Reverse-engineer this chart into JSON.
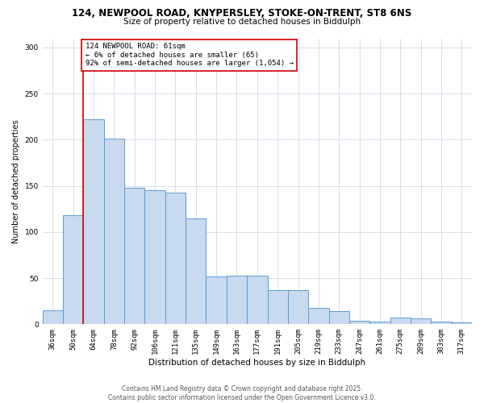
{
  "title_line1": "124, NEWPOOL ROAD, KNYPERSLEY, STOKE-ON-TRENT, ST8 6NS",
  "title_line2": "Size of property relative to detached houses in Biddulph",
  "xlabel": "Distribution of detached houses by size in Biddulph",
  "ylabel": "Number of detached properties",
  "categories": [
    "36sqm",
    "50sqm",
    "64sqm",
    "78sqm",
    "92sqm",
    "106sqm",
    "121sqm",
    "135sqm",
    "149sqm",
    "163sqm",
    "177sqm",
    "191sqm",
    "205sqm",
    "219sqm",
    "233sqm",
    "247sqm",
    "261sqm",
    "275sqm",
    "289sqm",
    "303sqm",
    "317sqm"
  ],
  "values": [
    15,
    118,
    222,
    201,
    148,
    145,
    143,
    115,
    52,
    53,
    53,
    37,
    37,
    18,
    14,
    4,
    3,
    7,
    6,
    3,
    2
  ],
  "bar_color": "#c9d9ef",
  "bar_edge_color": "#5b9bd5",
  "vline_x_index": 1.5,
  "vline_color": "#cc0000",
  "annotation_text": "124 NEWPOOL ROAD: 61sqm\n← 6% of detached houses are smaller (65)\n92% of semi-detached houses are larger (1,054) →",
  "annotation_box_color": "#ffffff",
  "annotation_box_edge": "#cc0000",
  "ylim": [
    0,
    310
  ],
  "yticks": [
    0,
    50,
    100,
    150,
    200,
    250,
    300
  ],
  "background_color": "#ffffff",
  "footer_text": "Contains HM Land Registry data © Crown copyright and database right 2025.\nContains public sector information licensed under the Open Government Licence v3.0.",
  "grid_color": "#d0d8e8",
  "title1_fontsize": 8.5,
  "title2_fontsize": 7.5,
  "xlabel_fontsize": 7.5,
  "ylabel_fontsize": 7.0,
  "tick_fontsize": 6.5,
  "annot_fontsize": 6.5,
  "footer_fontsize": 5.5
}
